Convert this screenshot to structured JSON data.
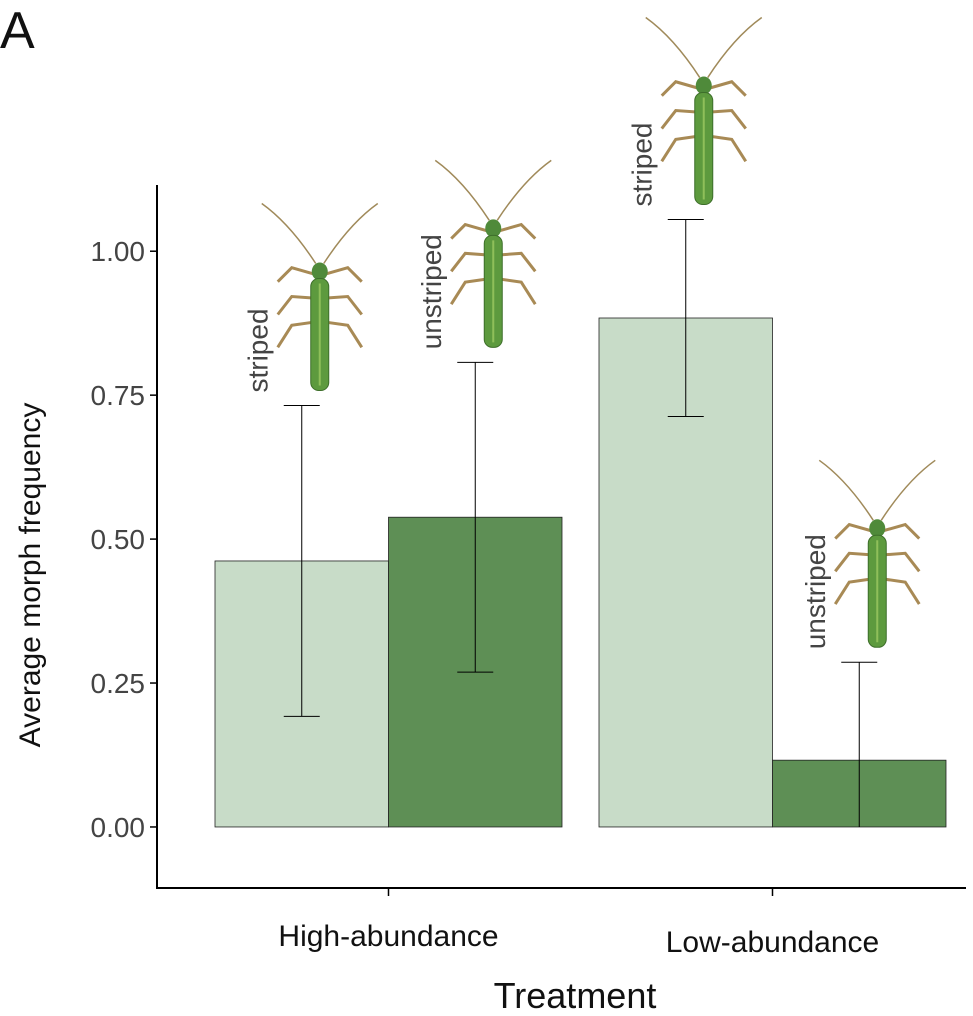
{
  "chart_data": {
    "type": "bar",
    "panel_label": "A",
    "xlabel": "Treatment",
    "ylabel": "Average morph frequency",
    "categories": [
      "High-abundance",
      "Low-abundance"
    ],
    "series": [
      {
        "name": "striped",
        "color": "#c8dcc8",
        "values": [
          0.462,
          0.884
        ],
        "errors": [
          0.27,
          0.171
        ]
      },
      {
        "name": "unstriped",
        "color": "#5e8f55",
        "values": [
          0.538,
          0.116
        ],
        "errors": [
          0.269,
          0.17
        ]
      }
    ],
    "ylim": [
      -0.106,
      1.115
    ],
    "yticks": [
      {
        "value": 0,
        "label": "0.00"
      },
      {
        "value": 0.25,
        "label": "0.25"
      },
      {
        "value": 0.5,
        "label": "0.50"
      },
      {
        "value": 0.75,
        "label": "0.75"
      },
      {
        "value": 1,
        "label": "1.00"
      }
    ]
  }
}
